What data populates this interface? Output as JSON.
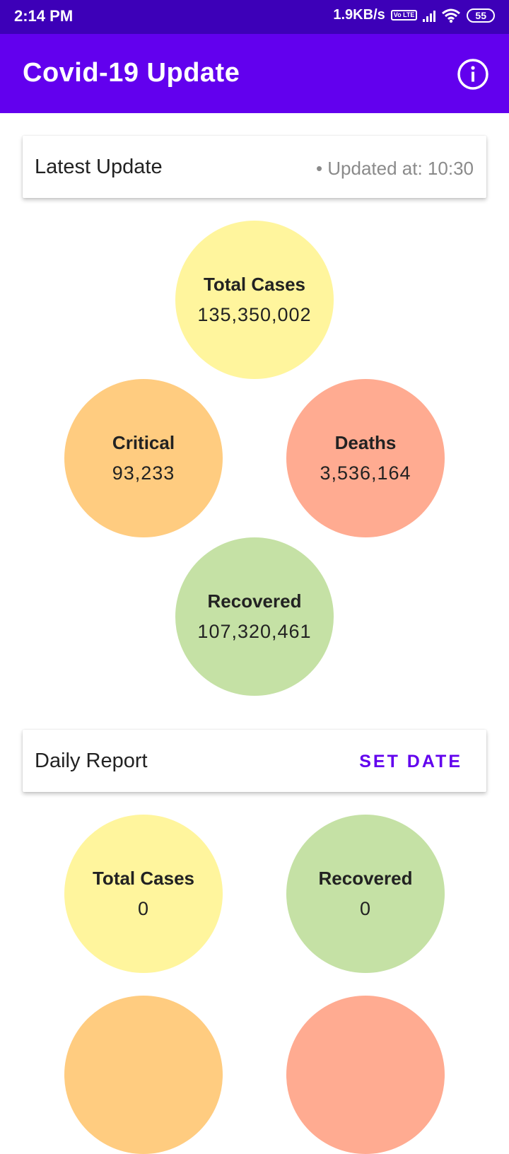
{
  "status_bar": {
    "time": "2:14 PM",
    "net_speed": "1.9KB/s",
    "volte": "Vo LTE",
    "battery": "55"
  },
  "app_bar": {
    "title": "Covid-19 Update",
    "info_icon": "info-icon"
  },
  "latest": {
    "title": "Latest Update",
    "updated": "• Updated at: 10:30",
    "stats": {
      "total": {
        "label": "Total Cases",
        "value": "135,350,002",
        "color": "#fff59d"
      },
      "critical": {
        "label": "Critical",
        "value": "93,233",
        "color": "#ffcc80"
      },
      "deaths": {
        "label": "Deaths",
        "value": "3,536,164",
        "color": "#ffab91"
      },
      "recovered": {
        "label": "Recovered",
        "value": "107,320,461",
        "color": "#c5e1a5"
      }
    }
  },
  "daily": {
    "title": "Daily Report",
    "set_date_label": "SET DATE",
    "stats": {
      "total": {
        "label": "Total Cases",
        "value": "0",
        "color": "#fff59d"
      },
      "recovered": {
        "label": "Recovered",
        "value": "0",
        "color": "#c5e1a5"
      },
      "critical": {
        "color": "#ffcc80"
      },
      "deaths": {
        "color": "#ffab91"
      }
    }
  }
}
